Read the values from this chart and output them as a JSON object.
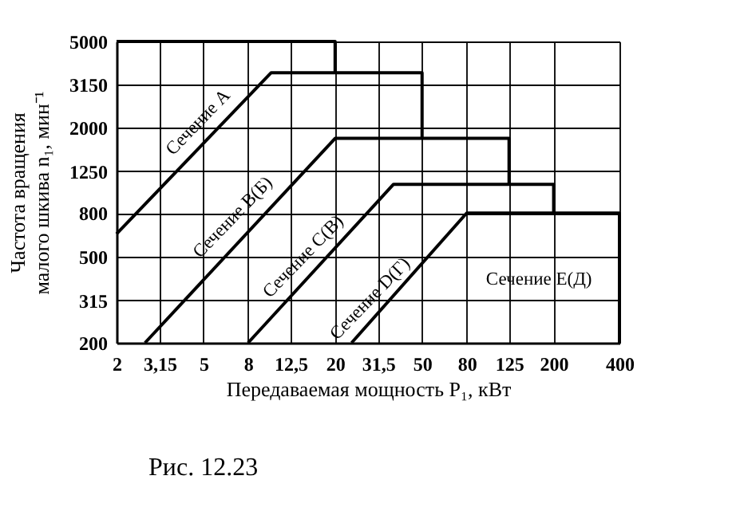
{
  "chart_data": {
    "type": "line",
    "xlabel": "Передаваемая мощность P₁, кВт",
    "ylabel": "Частота вращения\nмалого шкива n₁, мин⁻¹",
    "log": "xy",
    "xlim": [
      2,
      400
    ],
    "ylim": [
      200,
      5000
    ],
    "xticks": [
      2,
      {
        "value": 3.15,
        "label": "3,15"
      },
      5,
      8,
      {
        "value": 12.5,
        "label": "12,5"
      },
      20,
      {
        "value": 31.5,
        "label": "31,5"
      },
      50,
      80,
      125,
      200,
      400
    ],
    "yticks": [
      200,
      315,
      500,
      800,
      1250,
      2000,
      3150,
      5000
    ],
    "grid": true,
    "legend": false,
    "marker": "none",
    "line_style": "solid",
    "series": [
      {
        "color": "#000000",
        "x": [
          2,
          20,
          20
        ],
        "values": [
          5000,
          5000,
          3580
        ]
      },
      {
        "color": "#000000",
        "x": [
          2,
          10.2,
          50,
          50
        ],
        "values": [
          640,
          3580,
          3580,
          1775
        ]
      },
      {
        "color": "#000000",
        "x": [
          2.7,
          20,
          125,
          125
        ],
        "values": [
          200,
          1775,
          1775,
          1087
        ]
      },
      {
        "color": "#000000",
        "x": [
          8,
          37,
          200,
          200
        ],
        "values": [
          200,
          1087,
          1087,
          800
        ]
      },
      {
        "color": "#000000",
        "x": [
          23.8,
          80,
          400,
          400
        ],
        "values": [
          200,
          800,
          800,
          200
        ]
      }
    ],
    "annotations": [
      "Сечение A",
      "Сечение B(Б)",
      "Сечение C(B)",
      "Сечение D(Г)",
      "Сечение E(Д)",
      "Рис. 12.23"
    ]
  }
}
